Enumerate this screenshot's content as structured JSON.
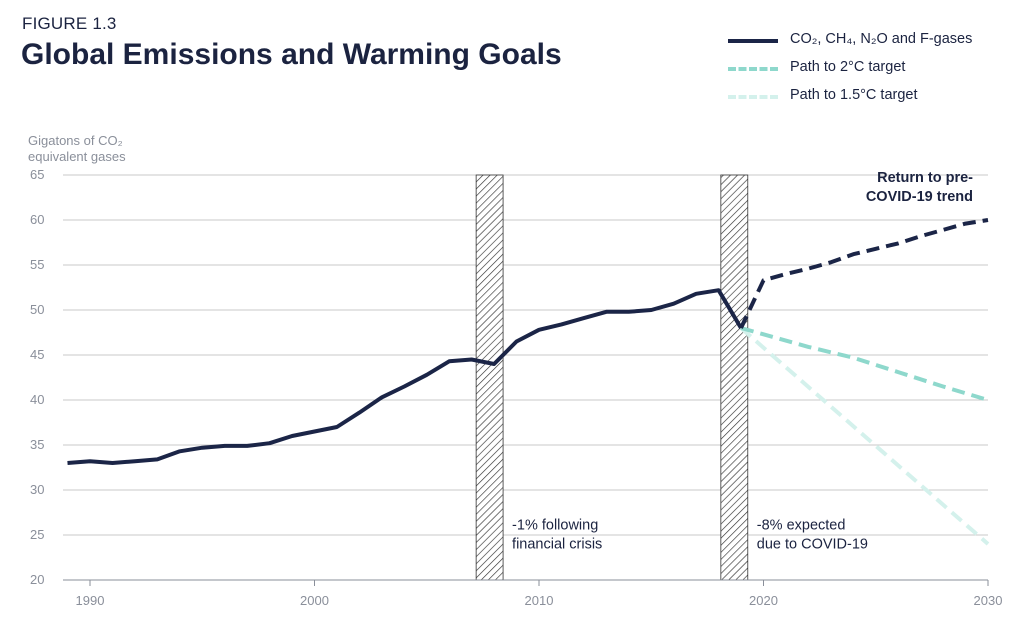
{
  "header": {
    "figure_label": "FIGURE 1.3",
    "title": "Global Emissions and Warming Goals"
  },
  "chart_data": {
    "type": "line",
    "ylabel_line1": "Gigatons of CO₂",
    "ylabel_line2": "equivalent gases",
    "ylim": [
      20,
      65
    ],
    "xlim": [
      1989,
      2030
    ],
    "y_ticks": [
      20,
      25,
      30,
      35,
      40,
      45,
      50,
      55,
      60,
      65
    ],
    "x_ticks": [
      1990,
      2000,
      2010,
      2020,
      2030
    ],
    "grid": true,
    "legend_position": "top-right",
    "series": [
      {
        "name": "CO₂, CH₄, N₂O and F-gases",
        "style": "solid",
        "color": "#1b2547",
        "points": [
          [
            1989,
            33.0
          ],
          [
            1990,
            33.2
          ],
          [
            1991,
            33.0
          ],
          [
            1992,
            33.2
          ],
          [
            1993,
            33.4
          ],
          [
            1994,
            34.3
          ],
          [
            1995,
            34.7
          ],
          [
            1996,
            34.9
          ],
          [
            1997,
            34.9
          ],
          [
            1998,
            35.2
          ],
          [
            1999,
            36.0
          ],
          [
            2000,
            36.5
          ],
          [
            2001,
            37.0
          ],
          [
            2002,
            38.6
          ],
          [
            2003,
            40.3
          ],
          [
            2004,
            41.5
          ],
          [
            2005,
            42.8
          ],
          [
            2006,
            44.3
          ],
          [
            2007,
            44.5
          ],
          [
            2008,
            44.0
          ],
          [
            2009,
            46.5
          ],
          [
            2010,
            47.8
          ],
          [
            2011,
            48.4
          ],
          [
            2012,
            49.1
          ],
          [
            2013,
            49.8
          ],
          [
            2014,
            49.8
          ],
          [
            2015,
            50.0
          ],
          [
            2016,
            50.7
          ],
          [
            2017,
            51.8
          ],
          [
            2018,
            52.2
          ],
          [
            2019,
            48.0
          ]
        ]
      },
      {
        "name": "Return to pre-COVID-19 trend",
        "style": "dashed",
        "color": "#1b2547",
        "points": [
          [
            2019,
            48.0
          ],
          [
            2020,
            53.3
          ],
          [
            2021,
            54.0
          ],
          [
            2022,
            54.6
          ],
          [
            2023,
            55.3
          ],
          [
            2024,
            56.2
          ],
          [
            2025,
            56.8
          ],
          [
            2026,
            57.4
          ],
          [
            2027,
            58.2
          ],
          [
            2028,
            58.9
          ],
          [
            2029,
            59.6
          ],
          [
            2030,
            60.0
          ]
        ]
      },
      {
        "name": "Path to 2°C target",
        "style": "dashed",
        "color": "#8ed8cc",
        "points": [
          [
            2019,
            48.0
          ],
          [
            2020,
            47.3
          ],
          [
            2022,
            45.9
          ],
          [
            2024,
            44.7
          ],
          [
            2026,
            43.1
          ],
          [
            2028,
            41.5
          ],
          [
            2030,
            40.0
          ]
        ]
      },
      {
        "name": "Path to 1.5°C target",
        "style": "dashed",
        "color": "#d4f1ec",
        "points": [
          [
            2019,
            48.0
          ],
          [
            2030,
            24.0
          ]
        ]
      }
    ],
    "shaded_bands": [
      {
        "x0": 2007.2,
        "x1": 2008.4
      },
      {
        "x0": 2018.1,
        "x1": 2019.3
      }
    ],
    "annotations": [
      {
        "id": "financial",
        "lines": [
          "-1% following",
          "financial crisis"
        ],
        "x": 2008.8,
        "y": 25.6
      },
      {
        "id": "covid",
        "lines": [
          "-8% expected",
          "due to COVID-19"
        ],
        "x": 2019.7,
        "y": 25.6
      },
      {
        "id": "trend",
        "lines": [
          "Return to pre-",
          "COVID-19 trend"
        ],
        "x": 2030,
        "y": 64.2,
        "bold": true
      }
    ]
  },
  "legend": [
    {
      "label": "CO₂, CH₄, N₂O and F-gases",
      "color": "#1b2547",
      "style": "solid"
    },
    {
      "label": "Path to 2°C target",
      "color": "#8ed8cc",
      "style": "dashed"
    },
    {
      "label": "Path to 1.5°C target",
      "color": "#d4f1ec",
      "style": "dashed"
    }
  ],
  "colors": {
    "grid": "#c9c9c9",
    "axis": "#8a8f9a",
    "hatch": "#333333"
  }
}
